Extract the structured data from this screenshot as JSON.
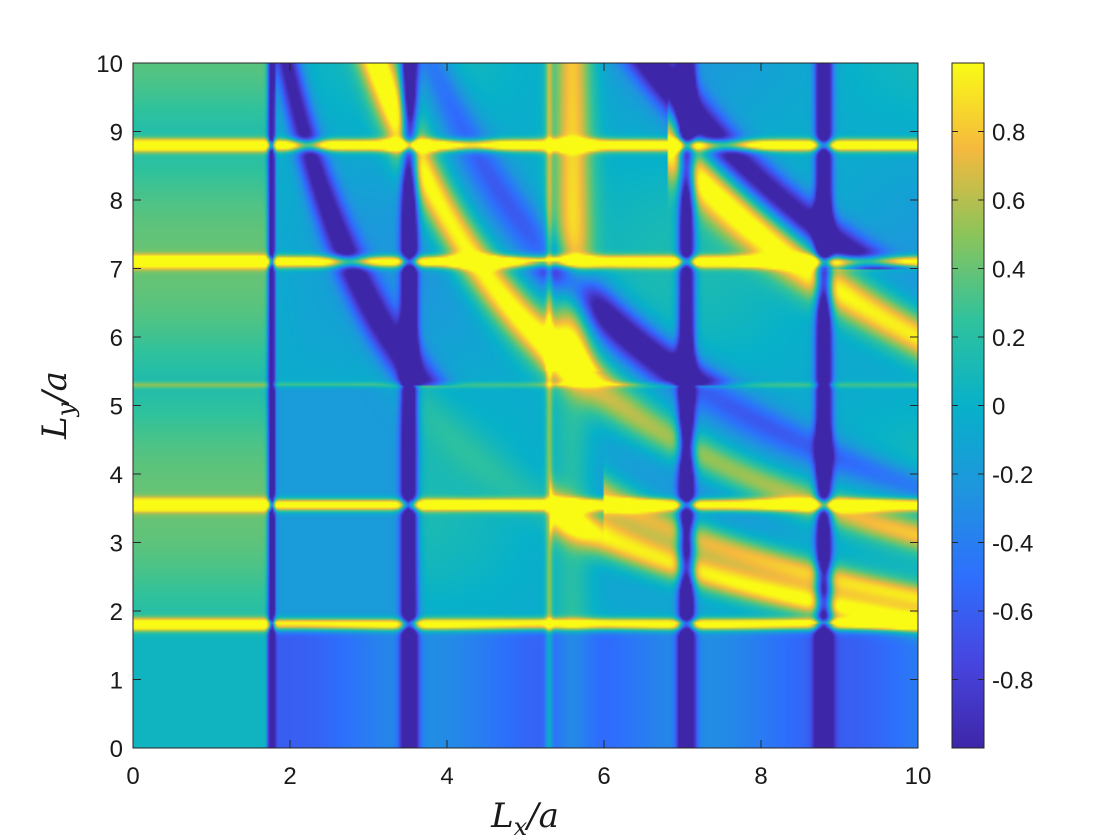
{
  "chart_data": {
    "type": "heatmap",
    "title": "",
    "xlabel_base": "L",
    "xlabel_sub": "x",
    "xlabel_tail": "/a",
    "ylabel_base": "L",
    "ylabel_sub": "y",
    "ylabel_tail": "/a",
    "xlim": [
      0,
      10
    ],
    "ylim": [
      0,
      10
    ],
    "x_ticks": [
      0,
      2,
      4,
      6,
      8,
      10
    ],
    "y_ticks": [
      0,
      1,
      2,
      3,
      4,
      5,
      6,
      7,
      8,
      9,
      10
    ],
    "x_tick_labels": [
      "0",
      "2",
      "4",
      "6",
      "8",
      "10"
    ],
    "y_tick_labels": [
      "0",
      "1",
      "2",
      "3",
      "4",
      "5",
      "6",
      "7",
      "8",
      "9",
      "10"
    ],
    "colorbar": {
      "range": [
        -1,
        1
      ],
      "ticks": [
        -0.8,
        -0.6,
        -0.4,
        -0.2,
        0,
        0.2,
        0.4,
        0.6,
        0.8
      ],
      "tick_labels": [
        "-0.8",
        "-0.6",
        "-0.4",
        "-0.2",
        "0",
        "0.2",
        "0.4",
        "0.6",
        "0.8"
      ],
      "colormap": "parula"
    },
    "features": {
      "bright_horizontal_lines_y": [
        1.8,
        3.55,
        7.1,
        8.8
      ],
      "dim_horizontal_line_y": 5.3,
      "dark_vertical_lines_x": [
        1.76,
        3.52,
        7.05,
        8.8
      ],
      "light_vertical_line_x": 5.3,
      "bright_hyperbola_k": [
        31,
        18.5
      ],
      "dark_hyperbola_k": [
        19.5,
        38,
        66
      ]
    },
    "grid": false
  }
}
